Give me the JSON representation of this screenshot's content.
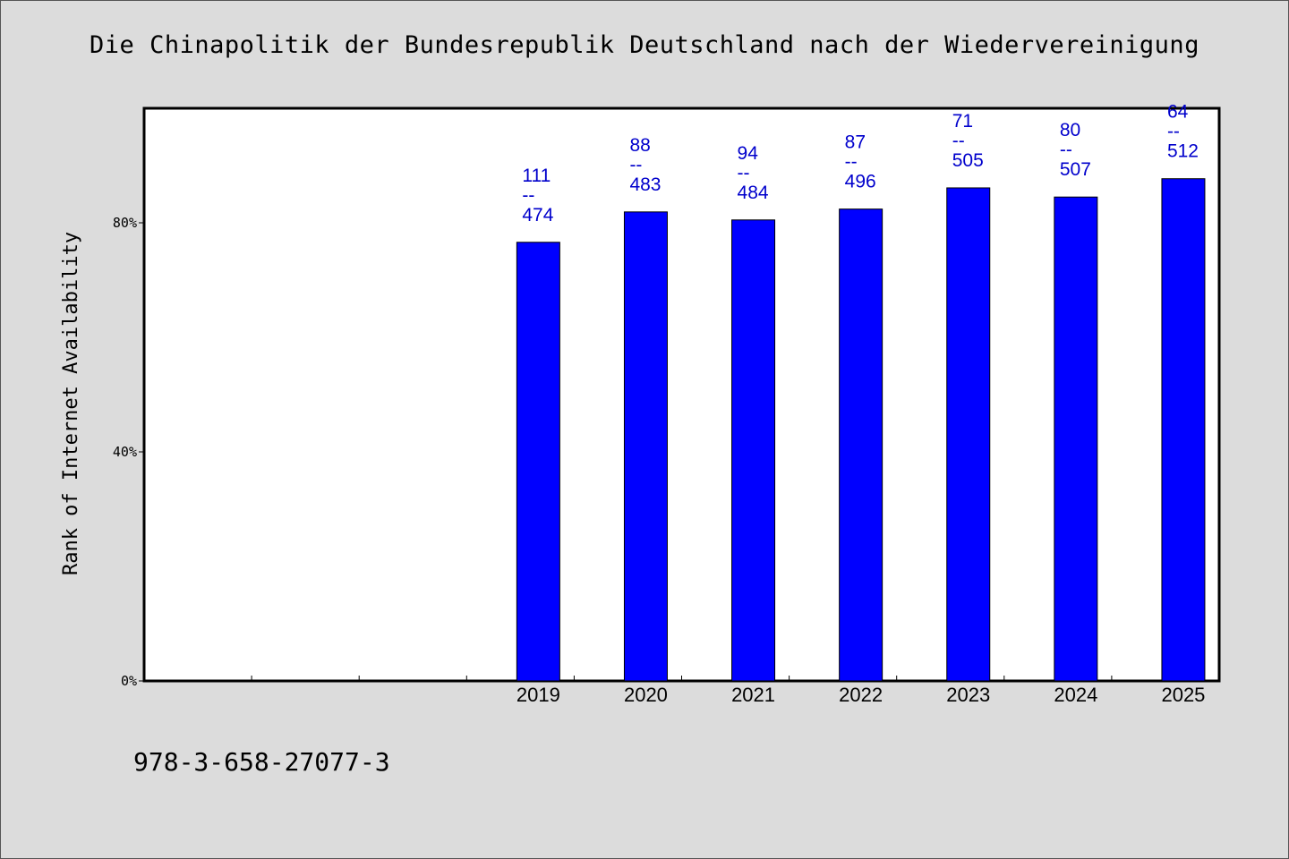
{
  "chart_data": {
    "type": "bar",
    "title": "Die Chinapolitik der Bundesrepublik Deutschland nach der Wiedervereinigung",
    "ylabel": "Rank of Internet Availability",
    "xlabel": "",
    "categories": [
      "",
      "",
      "",
      "2019",
      "2020",
      "2021",
      "2022",
      "2023",
      "2024",
      "2025"
    ],
    "values": [
      null,
      null,
      null,
      76.6,
      81.9,
      80.5,
      82.4,
      86.1,
      84.5,
      87.7
    ],
    "bar_labels": [
      null,
      null,
      null,
      [
        "111",
        "--",
        "474"
      ],
      [
        "88",
        "--",
        "483"
      ],
      [
        "94",
        "--",
        "484"
      ],
      [
        "87",
        "--",
        "496"
      ],
      [
        "71",
        "--",
        "505"
      ],
      [
        "80",
        "--",
        "507"
      ],
      [
        "64",
        "--",
        "512"
      ]
    ],
    "yticks": [
      0,
      40,
      80
    ],
    "ytick_labels": [
      "0%",
      "40%",
      "80%"
    ],
    "ylim": [
      0,
      100
    ],
    "grid": false,
    "colors": {
      "bar": "#0000ff",
      "bar_label": "#0000cc",
      "background": "#dcdcdc",
      "plot_area": "#ffffff"
    }
  },
  "footer": {
    "isbn": "978-3-658-27077-3"
  }
}
